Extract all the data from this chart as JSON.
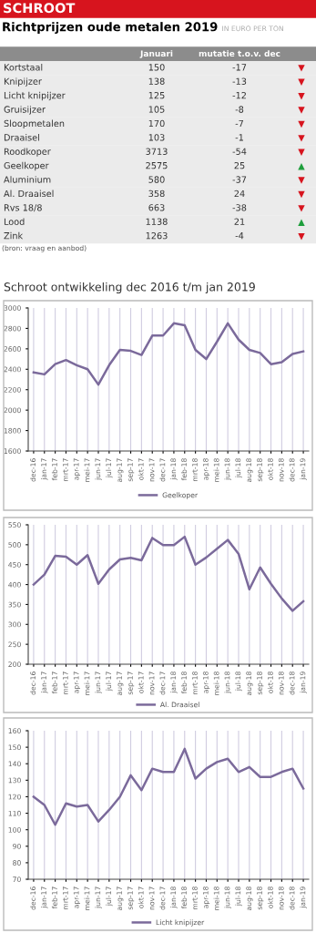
{
  "chart_data": [
    {
      "type": "other",
      "title": "Richtprijzen oude metalen 2019",
      "subtitle": "IN EURO PER TON",
      "annotations": [
        "SCHROOT",
        "(bron: vraag en aanbod)"
      ],
      "categories": [
        "Kortstaal",
        "Knipijzer",
        "Licht knipijzer",
        "Gruisijzer",
        "Sloopmetalen",
        "Draaisel",
        "Roodkoper",
        "Geelkoper",
        "Aluminium",
        "Al. Draaisel",
        "Rvs 18/8",
        "Lood",
        "Zink"
      ],
      "data_labels": true,
      "series": [
        {
          "name": "Januari",
          "values": [
            150,
            138,
            125,
            105,
            170,
            103,
            3713,
            2575,
            580,
            358,
            663,
            1138,
            1263
          ]
        },
        {
          "name": "mutatie t.o.v. dec",
          "values": [
            -17,
            -13,
            -12,
            -8,
            -7,
            -1,
            -54,
            25,
            -37,
            24,
            -38,
            21,
            -4
          ]
        },
        {
          "values": [
            null,
            null,
            null,
            null,
            null,
            null,
            null,
            null,
            null,
            null,
            null,
            null,
            null
          ],
          "value_labels": [
            "▼",
            "▼",
            "▼",
            "▼",
            "▼",
            "▼",
            "▼",
            "▲",
            "▼",
            "▼",
            "▼",
            "▲",
            "▼"
          ],
          "colors": [
            "#d7141e",
            "#d7141e",
            "#d7141e",
            "#d7141e",
            "#d7141e",
            "#d7141e",
            "#d7141e",
            "#1e9e3c",
            "#d7141e",
            "#d7141e",
            "#d7141e",
            "#1e9e3c",
            "#d7141e"
          ]
        }
      ]
    },
    {
      "type": "line",
      "title": "Schroot ontwikkeling dec 2016 t/m jan 2019",
      "categories": [
        "dec-16",
        "jan-17",
        "feb-17",
        "mrt-17",
        "apr-17",
        "mei-17",
        "jun-17",
        "jul-17",
        "aug-17",
        "sep-17",
        "okt-17",
        "nov-17",
        "dec-17",
        "jan-18",
        "feb-18",
        "mrt-18",
        "apr-18",
        "mei-18",
        "jun-18",
        "jul-18",
        "aug-18",
        "sep-18",
        "okt-18",
        "nov-18",
        "dec-18",
        "jan-19"
      ],
      "series": [
        {
          "name": "Geelkoper",
          "color": "#7b6a9b",
          "values": [
            2370,
            2350,
            2450,
            2490,
            2440,
            2400,
            2250,
            2440,
            2590,
            2580,
            2540,
            2730,
            2730,
            2850,
            2830,
            2590,
            2500,
            2670,
            2850,
            2690,
            2590,
            2560,
            2450,
            2470,
            2550,
            2575
          ]
        }
      ],
      "ylim": [
        1600,
        3000
      ],
      "yticks": [
        1600,
        1800,
        2000,
        2200,
        2400,
        2600,
        2800,
        3000
      ],
      "grid": "x",
      "legend": "bottom"
    },
    {
      "type": "line",
      "categories": [
        "dec-16",
        "jan-17",
        "feb-17",
        "mrt-17",
        "apr-17",
        "mei-17",
        "jun-17",
        "jul-17",
        "aug-17",
        "sep-17",
        "okt-17",
        "nov-17",
        "dec-17",
        "jan-18",
        "feb-18",
        "mrt-18",
        "apr-18",
        "mei-18",
        "jun-18",
        "jul-18",
        "aug-18",
        "sep-18",
        "okt-18",
        "nov-18",
        "dec-18",
        "jan-19"
      ],
      "series": [
        {
          "name": "Al. Draaisel",
          "color": "#7b6a9b",
          "values": [
            400,
            425,
            472,
            470,
            450,
            474,
            402,
            438,
            463,
            467,
            461,
            517,
            499,
            499,
            520,
            450,
            468,
            490,
            512,
            477,
            388,
            443,
            402,
            365,
            334,
            358
          ]
        }
      ],
      "ylim": [
        200,
        550
      ],
      "yticks": [
        200,
        250,
        300,
        350,
        400,
        450,
        500,
        550
      ],
      "grid": "x",
      "legend": "bottom"
    },
    {
      "type": "line",
      "categories": [
        "dec-16",
        "jan-17",
        "feb-17",
        "mrt-17",
        "apr-17",
        "mei-17",
        "jun-17",
        "jul-17",
        "aug-17",
        "sep-17",
        "okt-17",
        "nov-17",
        "dec-17",
        "jan-18",
        "feb-18",
        "mrt-18",
        "apr-18",
        "mei-18",
        "jun-18",
        "jul-18",
        "aug-18",
        "sep-18",
        "okt-18",
        "nov-18",
        "dec-18",
        "jan-19"
      ],
      "series": [
        {
          "name": "Licht knipijzer",
          "color": "#7b6a9b",
          "values": [
            120,
            115,
            103,
            116,
            114,
            115,
            105,
            112,
            120,
            133,
            124,
            137,
            135,
            135,
            149,
            131,
            137,
            141,
            143,
            135,
            138,
            132,
            132,
            135,
            137,
            125
          ]
        }
      ],
      "ylim": [
        70,
        160
      ],
      "yticks": [
        70,
        80,
        90,
        100,
        110,
        120,
        130,
        140,
        150,
        160
      ],
      "grid": "x",
      "legend": "bottom"
    }
  ]
}
